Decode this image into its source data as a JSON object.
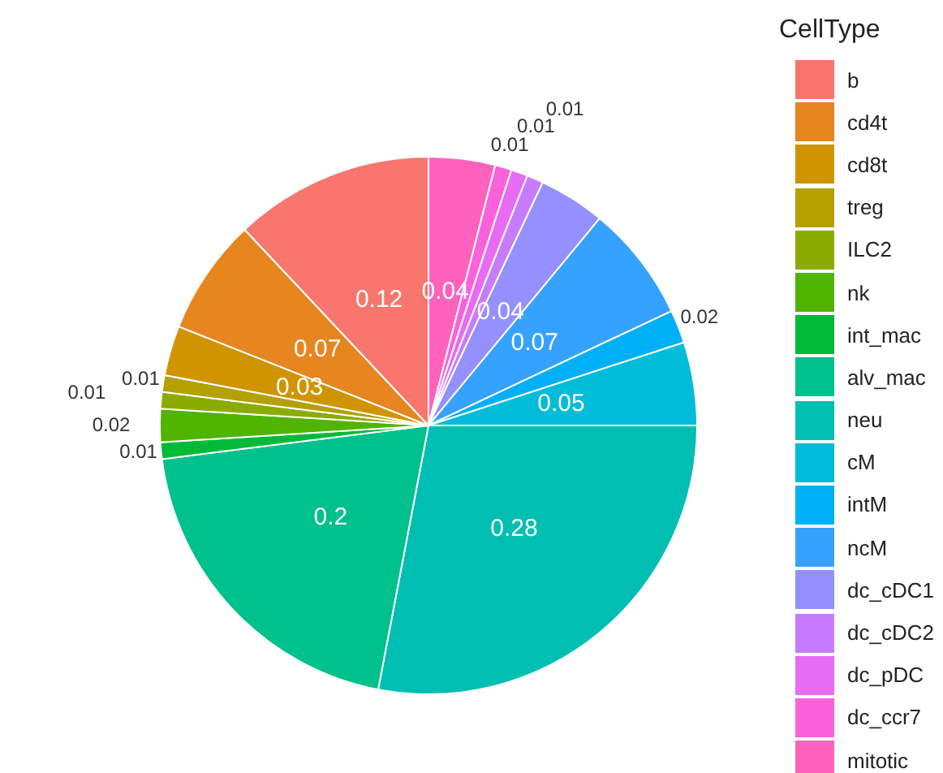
{
  "chart_data": {
    "type": "pie",
    "legend_title": "CellType",
    "legend": "right",
    "data_labels": true,
    "categories": [
      "b",
      "cd4t",
      "cd8t",
      "treg",
      "ILC2",
      "nk",
      "int_mac",
      "alv_mac",
      "neu",
      "cM",
      "intM",
      "ncM",
      "dc_cDC1",
      "dc_cDC2",
      "dc_pDC",
      "dc_ccr7",
      "mitotic"
    ],
    "values": [
      0.12,
      0.07,
      0.03,
      0.01,
      0.01,
      0.02,
      0.01,
      0.2,
      0.28,
      0.05,
      0.02,
      0.07,
      0.04,
      0.01,
      0.01,
      0.01,
      0.04
    ],
    "colors": [
      "#f8766d",
      "#e7851e",
      "#d09400",
      "#b2a100",
      "#8bab00",
      "#50b400",
      "#00ba38",
      "#00c08b",
      "#00bfb2",
      "#00bcd8",
      "#00b0f6",
      "#35a2ff",
      "#9590ff",
      "#c77cff",
      "#e76bf3",
      "#fa62db",
      "#ff62bc"
    ]
  }
}
